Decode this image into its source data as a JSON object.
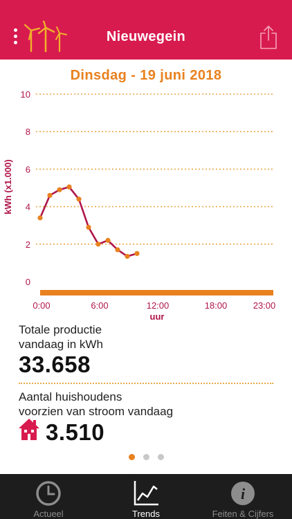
{
  "header": {
    "title": "Nieuwegein",
    "menu_icon": "more-vertical-icon",
    "logo_icon": "wind-turbines-icon",
    "share_icon": "share-icon"
  },
  "chart_title": "Dinsdag - 19 juni 2018",
  "chart_data": {
    "type": "line",
    "title": "Dinsdag - 19 juni 2018",
    "xlabel": "uur",
    "ylabel": "kWh (x1.000)",
    "ylim": [
      0,
      10
    ],
    "xlim": [
      0,
      23
    ],
    "y_ticks": [
      "0",
      "2",
      "4",
      "6",
      "8",
      "10"
    ],
    "x_ticks": [
      "0:00",
      "6:00",
      "12:00",
      "18:00",
      "23:00"
    ],
    "x_tick_values": [
      0,
      6,
      12,
      18,
      23
    ],
    "grid": true,
    "series": [
      {
        "x": [
          0,
          1,
          2,
          3,
          4,
          5,
          6,
          7,
          8,
          9,
          10
        ],
        "values": [
          3.4,
          4.6,
          4.9,
          5.05,
          4.4,
          2.9,
          2.0,
          2.2,
          1.7,
          1.35,
          1.5
        ]
      }
    ],
    "colors": {
      "line": "#b0154a",
      "point": "#e8811e",
      "axis": "#e8811e",
      "grid": "#e8a94a"
    }
  },
  "stats": {
    "production_label": "Totale productie\nvandaag in kWh",
    "production_value": "33.658",
    "households_label": "Aantal huishoudens\nvoorzien van stroom vandaag",
    "households_value": "3.510",
    "house_icon": "house-icon"
  },
  "pager": {
    "count": 3,
    "active": 0
  },
  "tabs": [
    {
      "label": "Actueel",
      "icon": "clock-icon",
      "active": false
    },
    {
      "label": "Trends",
      "icon": "line-chart-icon",
      "active": true
    },
    {
      "label": "Feiten & Cijfers",
      "icon": "info-icon",
      "active": false
    }
  ],
  "colors": {
    "brand": "#d81b4f",
    "accent": "#e8811e",
    "tabbar": "#1d1d1d"
  }
}
